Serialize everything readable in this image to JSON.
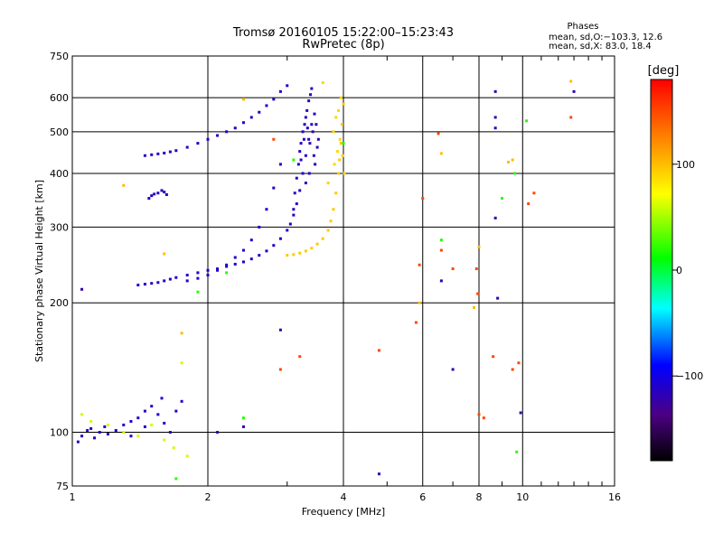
{
  "chart_data": [
    {
      "type": "scatter",
      "title": "Tromsø 20160105 15:22:00–15:23:43",
      "subtitle": "RwPretec (8p)",
      "xlabel": "Frequency [MHz]",
      "ylabel": "Stationary phase Virtual Height [km]",
      "x_scale": "log2",
      "y_scale": "log",
      "xlim": [
        1,
        16
      ],
      "ylim": [
        75,
        750
      ],
      "x_ticks": [
        1,
        2,
        4,
        6,
        8,
        10,
        16
      ],
      "x_tick_labels": [
        "1",
        "2",
        "4",
        "6",
        "8",
        "10",
        "16"
      ],
      "y_ticks": [
        75,
        100,
        200,
        300,
        400,
        500,
        600,
        750
      ],
      "y_tick_labels": [
        "75",
        "100",
        "200",
        "300",
        "400",
        "500",
        "600",
        "750"
      ],
      "grid": true,
      "point_groups": [
        {
          "role": "O-mode F trace",
          "phase_deg": -110,
          "points": [
            [
              1.4,
              220
            ],
            [
              1.45,
              221
            ],
            [
              1.5,
              222
            ],
            [
              1.55,
              223
            ],
            [
              1.6,
              225
            ],
            [
              1.65,
              227
            ],
            [
              1.7,
              229
            ],
            [
              1.8,
              232
            ],
            [
              1.9,
              235
            ],
            [
              2.0,
              238
            ],
            [
              2.1,
              240
            ],
            [
              2.2,
              243
            ],
            [
              2.3,
              246
            ],
            [
              2.4,
              249
            ],
            [
              2.5,
              253
            ],
            [
              2.6,
              258
            ],
            [
              2.7,
              264
            ],
            [
              2.8,
              272
            ],
            [
              2.9,
              282
            ],
            [
              3.0,
              295
            ],
            [
              3.05,
              305
            ],
            [
              3.1,
              320
            ],
            [
              3.15,
              340
            ],
            [
              3.2,
              365
            ],
            [
              3.25,
              400
            ],
            [
              3.3,
              440
            ],
            [
              3.35,
              480
            ],
            [
              3.4,
              520
            ],
            [
              3.45,
              550
            ]
          ]
        },
        {
          "role": "O-mode F scatter",
          "phase_deg": -115,
          "points": [
            [
              3.1,
              330
            ],
            [
              3.12,
              360
            ],
            [
              3.15,
              390
            ],
            [
              3.18,
              420
            ],
            [
              3.2,
              450
            ],
            [
              3.22,
              470
            ],
            [
              3.25,
              500
            ],
            [
              3.28,
              520
            ],
            [
              3.3,
              540
            ],
            [
              3.32,
              560
            ],
            [
              3.35,
              590
            ],
            [
              3.38,
              610
            ],
            [
              3.4,
              630
            ],
            [
              3.22,
              430
            ],
            [
              3.27,
              480
            ],
            [
              3.33,
              510
            ],
            [
              3.37,
              470
            ],
            [
              3.42,
              500
            ],
            [
              3.44,
              440
            ],
            [
              3.46,
              420
            ],
            [
              3.5,
              460
            ],
            [
              3.52,
              480
            ],
            [
              3.48,
              520
            ],
            [
              3.36,
              400
            ],
            [
              3.3,
              380
            ]
          ]
        },
        {
          "role": "O-mode upper trace",
          "phase_deg": -110,
          "points": [
            [
              1.45,
              440
            ],
            [
              1.5,
              442
            ],
            [
              1.55,
              444
            ],
            [
              1.6,
              446
            ],
            [
              1.65,
              449
            ],
            [
              1.7,
              452
            ],
            [
              1.8,
              460
            ],
            [
              1.9,
              470
            ],
            [
              2.0,
              480
            ],
            [
              2.1,
              490
            ],
            [
              2.2,
              500
            ],
            [
              2.3,
              510
            ],
            [
              2.4,
              525
            ],
            [
              2.5,
              540
            ],
            [
              2.6,
              555
            ],
            [
              2.7,
              575
            ],
            [
              2.8,
              595
            ],
            [
              2.9,
              620
            ],
            [
              3.0,
              640
            ]
          ]
        },
        {
          "role": "O-mode lower trace",
          "phase_deg": -110,
          "points": [
            [
              1.8,
              225
            ],
            [
              1.9,
              228
            ],
            [
              2.0,
              232
            ],
            [
              2.1,
              238
            ],
            [
              2.2,
              245
            ],
            [
              2.3,
              255
            ],
            [
              2.4,
              265
            ],
            [
              2.5,
              280
            ],
            [
              2.6,
              300
            ],
            [
              2.7,
              330
            ],
            [
              2.8,
              370
            ],
            [
              2.9,
              420
            ]
          ]
        },
        {
          "role": "small O-mode cluster",
          "phase_deg": -115,
          "points": [
            [
              1.48,
              350
            ],
            [
              1.5,
              355
            ],
            [
              1.52,
              358
            ],
            [
              1.55,
              360
            ],
            [
              1.58,
              365
            ],
            [
              1.6,
              362
            ],
            [
              1.62,
              357
            ]
          ]
        },
        {
          "role": "X-mode trace",
          "phase_deg": 95,
          "points": [
            [
              3.0,
              258
            ],
            [
              3.1,
              259
            ],
            [
              3.2,
              261
            ],
            [
              3.3,
              264
            ],
            [
              3.4,
              268
            ],
            [
              3.5,
              274
            ],
            [
              3.6,
              282
            ],
            [
              3.7,
              295
            ],
            [
              3.75,
              310
            ],
            [
              3.8,
              330
            ],
            [
              3.85,
              360
            ],
            [
              3.9,
              400
            ],
            [
              3.92,
              430
            ],
            [
              3.95,
              470
            ],
            [
              3.97,
              520
            ],
            [
              4.0,
              580
            ]
          ]
        },
        {
          "role": "X-mode scatter",
          "phase_deg": 90,
          "points": [
            [
              3.8,
              500
            ],
            [
              3.85,
              540
            ],
            [
              3.9,
              560
            ],
            [
              3.95,
              600
            ],
            [
              3.7,
              380
            ],
            [
              3.82,
              420
            ],
            [
              3.88,
              450
            ],
            [
              3.93,
              480
            ],
            [
              3.6,
              650
            ],
            [
              3.98,
              440
            ],
            [
              4.02,
              400
            ]
          ]
        },
        {
          "role": "E-region echoes",
          "phase_deg": -110,
          "points": [
            [
              1.03,
              95
            ],
            [
              1.05,
              98
            ],
            [
              1.08,
              101
            ],
            [
              1.1,
              102
            ],
            [
              1.12,
              97
            ],
            [
              1.15,
              100
            ],
            [
              1.18,
              103
            ],
            [
              1.2,
              99
            ],
            [
              1.25,
              101
            ],
            [
              1.3,
              104
            ],
            [
              1.35,
              106
            ],
            [
              1.4,
              108
            ],
            [
              1.45,
              112
            ],
            [
              1.5,
              115
            ],
            [
              1.55,
              110
            ],
            [
              1.6,
              105
            ],
            [
              1.65,
              100
            ],
            [
              1.7,
              112
            ],
            [
              1.75,
              118
            ],
            [
              1.58,
              120
            ],
            [
              1.45,
              103
            ],
            [
              1.35,
              98
            ]
          ]
        },
        {
          "role": "E-region mixed phase",
          "phase_deg": 60,
          "points": [
            [
              1.05,
              110
            ],
            [
              1.1,
              106
            ],
            [
              1.2,
              104
            ],
            [
              1.3,
              100
            ],
            [
              1.4,
              98
            ],
            [
              1.5,
              104
            ],
            [
              1.6,
              96
            ],
            [
              1.68,
              92
            ],
            [
              1.75,
              145
            ],
            [
              1.8,
              88
            ]
          ]
        },
        {
          "role": "sporadic noise",
          "phase_deg": 150,
          "points": [
            [
              2.8,
              480
            ],
            [
              2.9,
              140
            ],
            [
              3.2,
              150
            ],
            [
              4.8,
              155
            ],
            [
              5.8,
              180
            ],
            [
              5.9,
              245
            ],
            [
              6.0,
              350
            ],
            [
              6.5,
              495
            ],
            [
              6.6,
              265
            ],
            [
              7.0,
              240
            ],
            [
              7.9,
              240
            ],
            [
              7.95,
              210
            ],
            [
              8.0,
              110
            ],
            [
              8.2,
              108
            ],
            [
              8.6,
              150
            ],
            [
              9.5,
              140
            ],
            [
              9.8,
              145
            ],
            [
              10.3,
              340
            ],
            [
              10.6,
              360
            ],
            [
              12.8,
              540
            ]
          ]
        },
        {
          "role": "sporadic green/cyan",
          "phase_deg": 20,
          "points": [
            [
              1.7,
              78
            ],
            [
              1.9,
              212
            ],
            [
              2.2,
              235
            ],
            [
              2.4,
              108
            ],
            [
              3.1,
              430
            ],
            [
              4.0,
              470
            ],
            [
              6.6,
              280
            ],
            [
              9.0,
              350
            ],
            [
              9.6,
              400
            ],
            [
              9.7,
              90
            ],
            [
              10.2,
              530
            ]
          ]
        },
        {
          "role": "sporadic blue",
          "phase_deg": -120,
          "points": [
            [
              1.05,
              215
            ],
            [
              2.1,
              100
            ],
            [
              2.4,
              103
            ],
            [
              2.9,
              173
            ],
            [
              4.8,
              80
            ],
            [
              6.6,
              225
            ],
            [
              7.0,
              140
            ],
            [
              8.7,
              620
            ],
            [
              8.7,
              510
            ],
            [
              8.7,
              540
            ],
            [
              8.7,
              315
            ],
            [
              8.8,
              205
            ],
            [
              9.9,
              111
            ],
            [
              13.0,
              620
            ]
          ]
        },
        {
          "role": "sporadic yellow",
          "phase_deg": 100,
          "points": [
            [
              1.3,
              375
            ],
            [
              1.6,
              260
            ],
            [
              1.75,
              170
            ],
            [
              2.4,
              595
            ],
            [
              5.9,
              200
            ],
            [
              6.6,
              445
            ],
            [
              7.8,
              195
            ],
            [
              8.0,
              270
            ],
            [
              9.3,
              425
            ],
            [
              9.5,
              430
            ],
            [
              12.8,
              655
            ]
          ]
        }
      ]
    },
    {
      "type": "heatmap",
      "title": "[deg]",
      "colormap": "phase",
      "range": [
        -180,
        180
      ],
      "ticks": [
        100,
        0,
        -100
      ],
      "tick_labels": [
        "100",
        "0",
        "−100"
      ]
    }
  ],
  "legend": {
    "title": "Phases",
    "line1": "mean, sd,O:−103.3, 12.6",
    "line2": "mean, sd,X:  83.0, 18.4"
  },
  "colors": {
    "background": "#ffffff",
    "axis": "#000000",
    "grid": "#000000"
  }
}
